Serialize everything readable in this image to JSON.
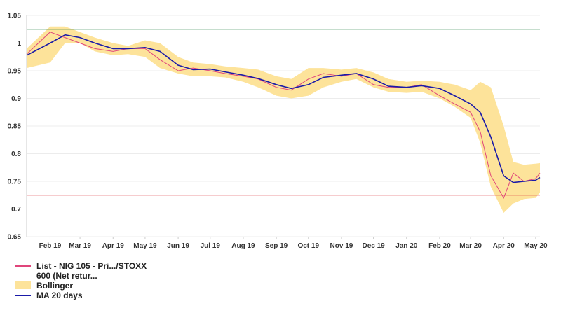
{
  "chart_data": {
    "type": "line",
    "title": "",
    "xlabel": "",
    "ylabel": "",
    "ylim": [
      0.65,
      1.05
    ],
    "yticks": [
      "0.65",
      "0.7",
      "0.75",
      "0.8",
      "0.85",
      "0.9",
      "0.95",
      "1",
      "1.05"
    ],
    "xticks": [
      "Feb 19",
      "Mar 19",
      "Apr 19",
      "May 19",
      "Jun 19",
      "Jul 19",
      "Aug 19",
      "Sep 19",
      "Oct 19",
      "Nov 19",
      "Dec 19",
      "Jan 20",
      "Feb 20",
      "Mar 20",
      "Apr 20",
      "May 20"
    ],
    "x_dates": [
      "2019-01-10",
      "2019-02-01",
      "2019-02-15",
      "2019-03-01",
      "2019-03-15",
      "2019-04-01",
      "2019-04-15",
      "2019-05-01",
      "2019-05-15",
      "2019-06-01",
      "2019-06-15",
      "2019-07-01",
      "2019-07-15",
      "2019-08-01",
      "2019-08-15",
      "2019-09-01",
      "2019-09-15",
      "2019-10-01",
      "2019-10-15",
      "2019-11-01",
      "2019-11-15",
      "2019-12-01",
      "2019-12-15",
      "2020-01-01",
      "2020-01-15",
      "2020-02-01",
      "2020-02-15",
      "2020-03-01",
      "2020-03-10",
      "2020-03-20",
      "2020-04-01",
      "2020-04-10",
      "2020-04-20",
      "2020-05-01",
      "2020-05-05"
    ],
    "series": [
      {
        "name": "List - NIG 105 - Pri.../STOXX\n600 (Net retur...",
        "color": "#e0457b",
        "values": [
          0.98,
          1.02,
          1.01,
          1.0,
          0.99,
          0.985,
          0.99,
          0.99,
          0.97,
          0.95,
          0.955,
          0.95,
          0.945,
          0.94,
          0.935,
          0.92,
          0.915,
          0.935,
          0.945,
          0.94,
          0.945,
          0.925,
          0.92,
          0.92,
          0.925,
          0.905,
          0.89,
          0.875,
          0.84,
          0.76,
          0.72,
          0.765,
          0.75,
          0.755,
          0.765
        ]
      },
      {
        "name": "MA 20 days",
        "color": "#1a1aa8",
        "values": [
          0.978,
          1.0,
          1.015,
          1.01,
          1.0,
          0.99,
          0.99,
          0.992,
          0.985,
          0.96,
          0.952,
          0.953,
          0.948,
          0.942,
          0.936,
          0.925,
          0.918,
          0.925,
          0.938,
          0.942,
          0.945,
          0.935,
          0.922,
          0.92,
          0.923,
          0.918,
          0.905,
          0.89,
          0.875,
          0.83,
          0.76,
          0.748,
          0.75,
          0.752,
          0.757
        ]
      }
    ],
    "band": {
      "name": "Bollinger",
      "color": "#fde39a",
      "upper": [
        0.99,
        1.03,
        1.03,
        1.02,
        1.01,
        1.0,
        0.995,
        1.005,
        1.0,
        0.975,
        0.965,
        0.962,
        0.958,
        0.955,
        0.952,
        0.94,
        0.935,
        0.955,
        0.955,
        0.952,
        0.955,
        0.947,
        0.935,
        0.93,
        0.932,
        0.93,
        0.925,
        0.915,
        0.93,
        0.92,
        0.85,
        0.785,
        0.78,
        0.782,
        0.783
      ],
      "lower": [
        0.955,
        0.965,
        1.0,
        1.0,
        0.985,
        0.978,
        0.98,
        0.975,
        0.955,
        0.945,
        0.94,
        0.94,
        0.938,
        0.93,
        0.92,
        0.905,
        0.9,
        0.905,
        0.92,
        0.93,
        0.935,
        0.92,
        0.912,
        0.91,
        0.912,
        0.9,
        0.885,
        0.865,
        0.82,
        0.74,
        0.693,
        0.71,
        0.718,
        0.72,
        0.73
      ]
    },
    "hlines": [
      {
        "y": 1.025,
        "color": "#1f7a3a"
      },
      {
        "y": 0.725,
        "color": "#d9363e"
      }
    ],
    "grid": true,
    "legend_position": "bottom-left"
  }
}
